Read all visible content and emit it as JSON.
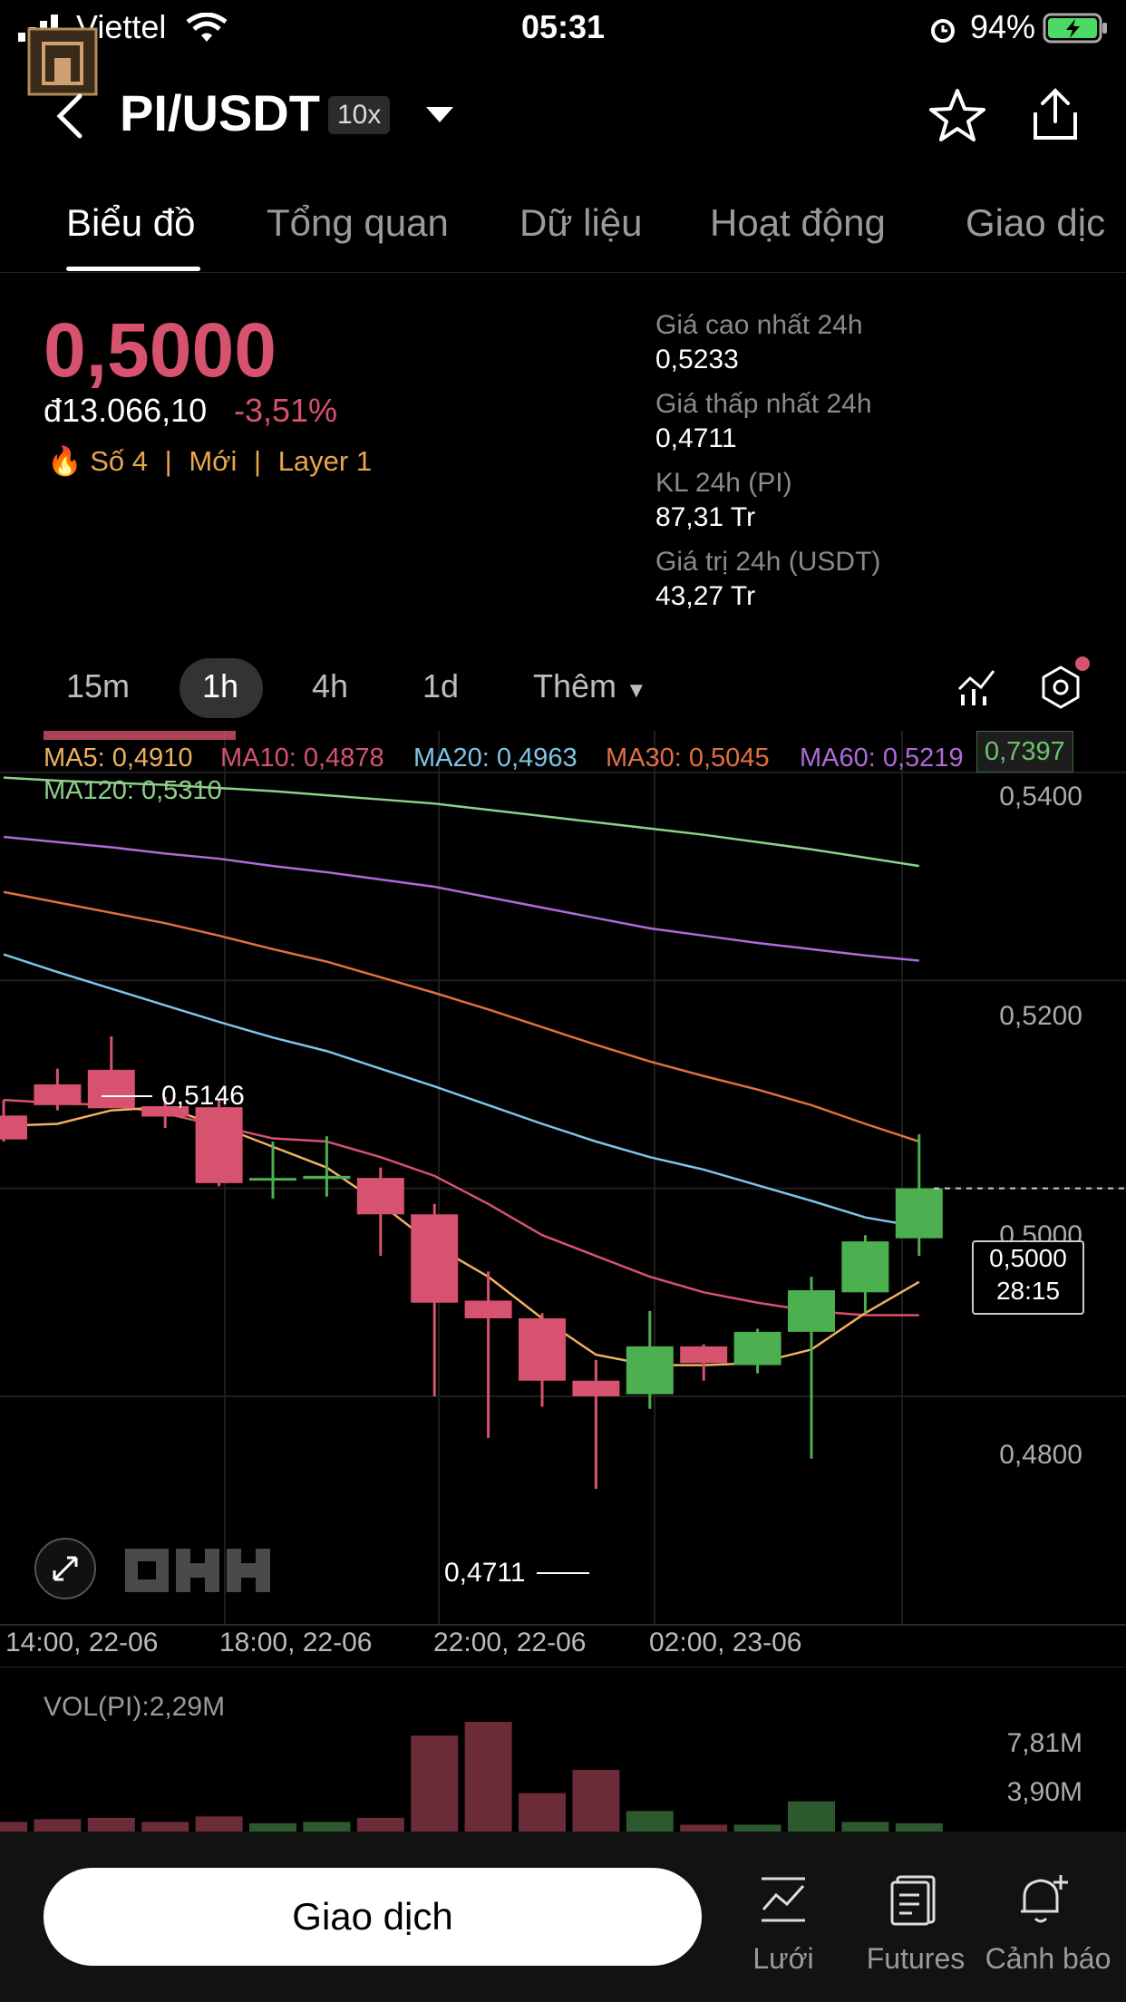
{
  "status": {
    "carrier": "Viettel",
    "time": "05:31",
    "battery": "94%"
  },
  "header": {
    "pair": "PI/USDT",
    "leverage": "10x"
  },
  "tabs": [
    "Biểu đồ",
    "Tổng quan",
    "Dữ liệu",
    "Hoạt động",
    "Giao dịc"
  ],
  "price": {
    "last": "0,5000",
    "fiat": "đ13.066,10",
    "change": "-3,51%",
    "tags": {
      "rank": "Số 4",
      "new": "Mới",
      "layer": "Layer 1"
    }
  },
  "stats": [
    {
      "label": "Giá cao nhất 24h",
      "value": "0,5233"
    },
    {
      "label": "Giá thấp nhất 24h",
      "value": "0,4711"
    },
    {
      "label": "KL 24h (PI)",
      "value": "87,31 Tr"
    },
    {
      "label": "Giá trị 24h (USDT)",
      "value": "43,27 Tr"
    }
  ],
  "intervals": {
    "items": [
      "15m",
      "1h",
      "4h",
      "1d"
    ],
    "active": "1h",
    "more": "Thêm"
  },
  "ma_legend": {
    "ma5": "MA5: 0,4910",
    "ma10": "MA10: 0,4878",
    "ma20": "MA20: 0,4963",
    "ma30": "MA30: 0,5045",
    "ma60": "MA60: 0,5219",
    "ma120": "MA120: 0,5310"
  },
  "top_tag": "0,7397",
  "axis": [
    "0,5400",
    "0,5200",
    "0,5000",
    "0,4800"
  ],
  "live_price": {
    "price": "0,5000",
    "countdown": "28:15"
  },
  "markers": {
    "high": "0,5146",
    "low": "0,4711"
  },
  "xlabels": [
    "14:00, 22-06",
    "18:00, 22-06",
    "22:00, 22-06",
    "02:00, 23-06"
  ],
  "volume": {
    "title": "VOL(PI):2,29M",
    "axis": [
      "7,81M",
      "3,90M"
    ]
  },
  "colors": {
    "up": "#4caf50",
    "down": "#d7526e",
    "ma5": "#f0b060",
    "ma10": "#d7526e",
    "ma20": "#7fc4e8",
    "ma30": "#e07040",
    "ma60": "#b06ad8",
    "ma120": "#8cd08c"
  },
  "chart_data": {
    "type": "candlestick",
    "candles": [
      {
        "o": 0.507,
        "h": 0.5085,
        "l": 0.5045,
        "c": 0.5047
      },
      {
        "o": 0.51,
        "h": 0.5115,
        "l": 0.5075,
        "c": 0.508
      },
      {
        "o": 0.5114,
        "h": 0.5146,
        "l": 0.508,
        "c": 0.5077
      },
      {
        "o": 0.5079,
        "h": 0.5088,
        "l": 0.5058,
        "c": 0.5069
      },
      {
        "o": 0.5078,
        "h": 0.5085,
        "l": 0.5002,
        "c": 0.5005
      },
      {
        "o": 0.5009,
        "h": 0.5045,
        "l": 0.499,
        "c": 0.501
      },
      {
        "o": 0.5009,
        "h": 0.505,
        "l": 0.4992,
        "c": 0.5012
      },
      {
        "o": 0.501,
        "h": 0.502,
        "l": 0.4935,
        "c": 0.4975
      },
      {
        "o": 0.4975,
        "h": 0.4985,
        "l": 0.48,
        "c": 0.489
      },
      {
        "o": 0.4892,
        "h": 0.492,
        "l": 0.476,
        "c": 0.4875
      },
      {
        "o": 0.4875,
        "h": 0.488,
        "l": 0.479,
        "c": 0.4815
      },
      {
        "o": 0.4815,
        "h": 0.4835,
        "l": 0.4711,
        "c": 0.48
      },
      {
        "o": 0.4802,
        "h": 0.4882,
        "l": 0.4788,
        "c": 0.4848
      },
      {
        "o": 0.4848,
        "h": 0.485,
        "l": 0.4815,
        "c": 0.4832
      },
      {
        "o": 0.483,
        "h": 0.4865,
        "l": 0.4822,
        "c": 0.4862
      },
      {
        "o": 0.4862,
        "h": 0.4915,
        "l": 0.474,
        "c": 0.4902
      },
      {
        "o": 0.49,
        "h": 0.4955,
        "l": 0.488,
        "c": 0.4949
      },
      {
        "o": 0.4952,
        "h": 0.5052,
        "l": 0.4935,
        "c": 0.5
      }
    ],
    "ma": {
      "ma5": [
        0.506,
        0.5062,
        0.5075,
        0.5078,
        0.506,
        0.504,
        0.502,
        0.4985,
        0.4945,
        0.4915,
        0.4875,
        0.484,
        0.483,
        0.483,
        0.4832,
        0.4845,
        0.488,
        0.491
      ],
      "ma10": [
        0.5085,
        0.5082,
        0.508,
        0.5072,
        0.506,
        0.5048,
        0.5045,
        0.503,
        0.5012,
        0.4985,
        0.4955,
        0.4935,
        0.4915,
        0.49,
        0.489,
        0.4882,
        0.4878,
        0.4878
      ],
      "ma20": [
        0.5225,
        0.5208,
        0.5192,
        0.5176,
        0.516,
        0.5145,
        0.5132,
        0.5115,
        0.5098,
        0.508,
        0.5062,
        0.5045,
        0.503,
        0.5018,
        0.5003,
        0.4988,
        0.4972,
        0.4963
      ],
      "ma30": [
        0.5285,
        0.5275,
        0.5265,
        0.5255,
        0.5243,
        0.523,
        0.5218,
        0.5203,
        0.5188,
        0.5172,
        0.5155,
        0.5138,
        0.5122,
        0.5108,
        0.5095,
        0.508,
        0.5062,
        0.5045
      ],
      "ma60": [
        0.5338,
        0.5333,
        0.5328,
        0.5322,
        0.5317,
        0.531,
        0.5304,
        0.5297,
        0.529,
        0.528,
        0.527,
        0.526,
        0.525,
        0.5243,
        0.5236,
        0.523,
        0.5224,
        0.5219
      ],
      "ma120": [
        0.5395,
        0.5392,
        0.539,
        0.5388,
        0.5385,
        0.5382,
        0.5378,
        0.5374,
        0.537,
        0.5364,
        0.5358,
        0.5352,
        0.5346,
        0.534,
        0.5333,
        0.5326,
        0.5318,
        0.531
      ]
    },
    "volume": [
      0.7,
      0.9,
      1.0,
      0.7,
      1.1,
      0.6,
      0.7,
      1.0,
      7.0,
      8.0,
      2.8,
      4.5,
      1.5,
      0.5,
      0.5,
      2.2,
      0.7,
      0.6
    ],
    "ylim": [
      0.465,
      0.544
    ],
    "grid": true
  }
}
